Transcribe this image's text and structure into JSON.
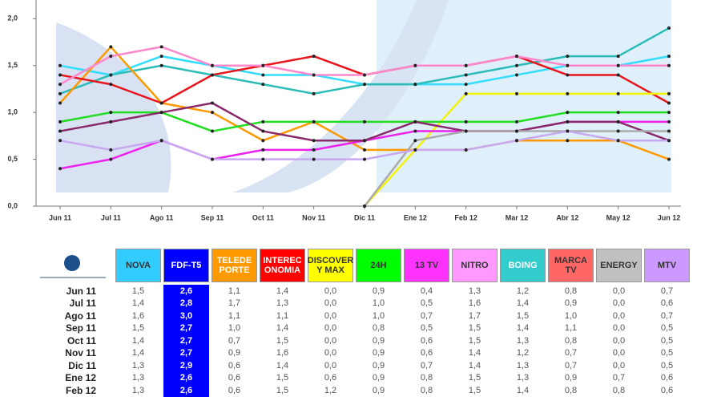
{
  "chart_data": {
    "type": "line",
    "categories": [
      "Jun 11",
      "Jul 11",
      "Ago 11",
      "Sep 11",
      "Oct 11",
      "Nov 11",
      "Dic 11",
      "Ene 12",
      "Feb 12",
      "Mar 12",
      "Abr 12",
      "May 12",
      "Jun 12"
    ],
    "ylim": [
      0,
      2.2
    ],
    "yticks": [
      {
        "value": 0,
        "label": "0,0"
      },
      {
        "value": 0.5,
        "label": "0,5"
      },
      {
        "value": 1,
        "label": "1,0"
      },
      {
        "value": 1.5,
        "label": "1,5"
      },
      {
        "value": 2,
        "label": "2,0"
      }
    ],
    "series": [
      {
        "color": "#33ddff",
        "values": [
          1.5,
          1.4,
          1.6,
          1.5,
          1.4,
          1.4,
          1.3,
          1.3,
          1.3,
          1.4,
          1.5,
          1.5,
          1.6
        ]
      },
      {
        "color": "#2bbcb8",
        "values": [
          1.2,
          1.4,
          1.5,
          1.4,
          1.3,
          1.2,
          1.3,
          1.3,
          1.4,
          1.5,
          1.6,
          1.6,
          1.9
        ]
      },
      {
        "color": "#ff9900",
        "values": [
          1.1,
          1.7,
          1.1,
          1.0,
          0.7,
          0.9,
          0.6,
          0.6,
          0.6,
          0.7,
          0.7,
          0.7,
          0.5
        ]
      },
      {
        "color": "#e8141c",
        "values": [
          1.4,
          1.3,
          1.1,
          1.4,
          1.5,
          1.6,
          1.4,
          1.5,
          1.5,
          1.6,
          1.4,
          1.4,
          1.1
        ]
      },
      {
        "color": "#f2f20a",
        "values": [
          null,
          null,
          null,
          null,
          null,
          null,
          0,
          0.6,
          1.2,
          1.2,
          1.2,
          1.2,
          1.2
        ]
      },
      {
        "color": "#22dd22",
        "values": [
          0.9,
          1.0,
          1.0,
          0.8,
          0.9,
          0.9,
          0.9,
          0.9,
          0.9,
          0.9,
          1.0,
          1.0,
          1.0
        ]
      },
      {
        "color": "#ee22ee",
        "values": [
          0.4,
          0.5,
          0.7,
          0.5,
          0.6,
          0.6,
          0.7,
          0.8,
          0.8,
          0.8,
          0.9,
          0.9,
          0.9
        ]
      },
      {
        "color": "#ff88cc",
        "values": [
          1.3,
          1.6,
          1.7,
          1.5,
          1.5,
          1.4,
          1.4,
          1.5,
          1.5,
          1.6,
          1.5,
          1.5,
          1.5
        ]
      },
      {
        "color": "#8b2a6b",
        "values": [
          0.8,
          0.9,
          1.0,
          1.1,
          0.8,
          0.7,
          0.7,
          0.9,
          0.8,
          0.8,
          0.9,
          0.9,
          0.7
        ]
      },
      {
        "color": "#aaaaaa",
        "values": [
          null,
          null,
          null,
          null,
          null,
          null,
          0,
          0.7,
          0.8,
          0.8,
          0.8,
          0.8,
          0.8
        ]
      },
      {
        "color": "#c8a8f0",
        "values": [
          0.7,
          0.6,
          0.7,
          0.5,
          0.5,
          0.5,
          0.5,
          0.6,
          0.6,
          0.7,
          0.8,
          0.7,
          0.7
        ]
      }
    ]
  },
  "table": {
    "columns": [
      {
        "label": "NOVA",
        "color": "#33ccff",
        "text": "#333"
      },
      {
        "label": "FDF-T5",
        "color": "#0000ff",
        "text": "#ffffff"
      },
      {
        "label": "TELEDE PORTE",
        "color": "#ff9900",
        "text": "#ffffff"
      },
      {
        "label": "INTEREC ONOMIA",
        "color": "#ff0000",
        "text": "#ffffff"
      },
      {
        "label": "DISCOVER Y MAX",
        "color": "#ffff00",
        "text": "#333"
      },
      {
        "label": "24H",
        "color": "#00ff00",
        "text": "#333"
      },
      {
        "label": "13 TV",
        "color": "#ff33ff",
        "text": "#333"
      },
      {
        "label": "NITRO",
        "color": "#ff99ff",
        "text": "#333"
      },
      {
        "label": "BOING",
        "color": "#33cccc",
        "text": "#ffffff"
      },
      {
        "label": "MARCA TV",
        "color": "#ff6666",
        "text": "#333"
      },
      {
        "label": "ENERGY",
        "color": "#c0c0c0",
        "text": "#333"
      },
      {
        "label": "MTV",
        "color": "#cc99ff",
        "text": "#333"
      }
    ],
    "rows": [
      {
        "label": "Jun 11",
        "cells": [
          "1,5",
          "2,6",
          "1,1",
          "1,4",
          "0,0",
          "0,9",
          "0,4",
          "1,3",
          "1,2",
          "0,8",
          "0,0",
          "0,7"
        ]
      },
      {
        "label": "Jul 11",
        "cells": [
          "1,4",
          "2,8",
          "1,7",
          "1,3",
          "0,0",
          "1,0",
          "0,5",
          "1,6",
          "1,4",
          "0,9",
          "0,0",
          "0,6"
        ]
      },
      {
        "label": "Ago 11",
        "cells": [
          "1,6",
          "3,0",
          "1,1",
          "1,1",
          "0,0",
          "1,0",
          "0,7",
          "1,7",
          "1,5",
          "1,0",
          "0,0",
          "0,7"
        ]
      },
      {
        "label": "Sep 11",
        "cells": [
          "1,5",
          "2,7",
          "1,0",
          "1,4",
          "0,0",
          "0,8",
          "0,5",
          "1,5",
          "1,4",
          "1,1",
          "0,0",
          "0,5"
        ]
      },
      {
        "label": "Oct 11",
        "cells": [
          "1,4",
          "2,7",
          "0,7",
          "1,5",
          "0,0",
          "0,9",
          "0,6",
          "1,5",
          "1,3",
          "0,8",
          "0,0",
          "0,5"
        ]
      },
      {
        "label": "Nov 11",
        "cells": [
          "1,4",
          "2,7",
          "0,9",
          "1,6",
          "0,0",
          "0,9",
          "0,6",
          "1,4",
          "1,2",
          "0,7",
          "0,0",
          "0,5"
        ]
      },
      {
        "label": "Dic 11",
        "cells": [
          "1,3",
          "2,9",
          "0,6",
          "1,4",
          "0,0",
          "0,9",
          "0,7",
          "1,4",
          "1,3",
          "0,7",
          "0,0",
          "0,5"
        ]
      },
      {
        "label": "Ene 12",
        "cells": [
          "1,3",
          "2,6",
          "0,6",
          "1,5",
          "0,6",
          "0,9",
          "0,8",
          "1,5",
          "1,3",
          "0,9",
          "0,7",
          "0,6"
        ]
      },
      {
        "label": "Feb 12",
        "cells": [
          "1,3",
          "2,6",
          "0,6",
          "1,5",
          "1,2",
          "0,9",
          "0,8",
          "1,5",
          "1,4",
          "0,8",
          "0,8",
          "0,6"
        ]
      }
    ]
  }
}
